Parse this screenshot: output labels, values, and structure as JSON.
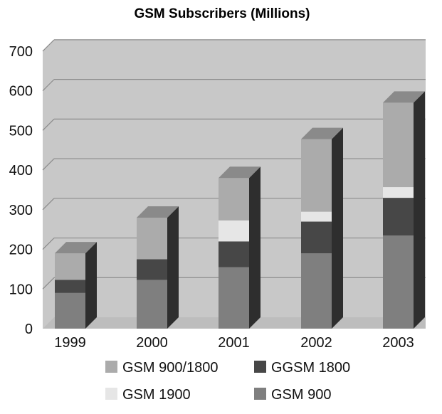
{
  "chart_data": {
    "type": "bar",
    "stacked": true,
    "three_d": true,
    "title": "GSM Subscribers (Millions)",
    "xlabel": "",
    "ylabel": "",
    "categories": [
      "1999",
      "2000",
      "2001",
      "2002",
      "2003"
    ],
    "ylim": [
      0,
      700
    ],
    "yticks": [
      0,
      100,
      200,
      300,
      400,
      500,
      600,
      700
    ],
    "grid": true,
    "legend_position": "bottom",
    "series": [
      {
        "name": "GSM 900",
        "values": [
          90,
          123,
          155,
          190,
          235
        ],
        "color": "#7f7f7f"
      },
      {
        "name": "GGSM 1800",
        "values": [
          33,
          52,
          65,
          80,
          95
        ],
        "color": "#474747"
      },
      {
        "name": "GSM 1900",
        "values": [
          0,
          0,
          53,
          25,
          27
        ],
        "color": "#e6e6e6"
      },
      {
        "name": "GSM 900/1800",
        "values": [
          67,
          105,
          107,
          183,
          213
        ],
        "color": "#ababab"
      }
    ],
    "legend": [
      "GSM 900/1800",
      "GGSM 1800",
      "GSM 1900",
      "GSM 900"
    ],
    "colors": {
      "plot_wall": "#c8c8c8",
      "gridline": "#8c8c8c",
      "bar_side": "#2e2e2e",
      "bar_top": "#8a8a8a"
    }
  }
}
